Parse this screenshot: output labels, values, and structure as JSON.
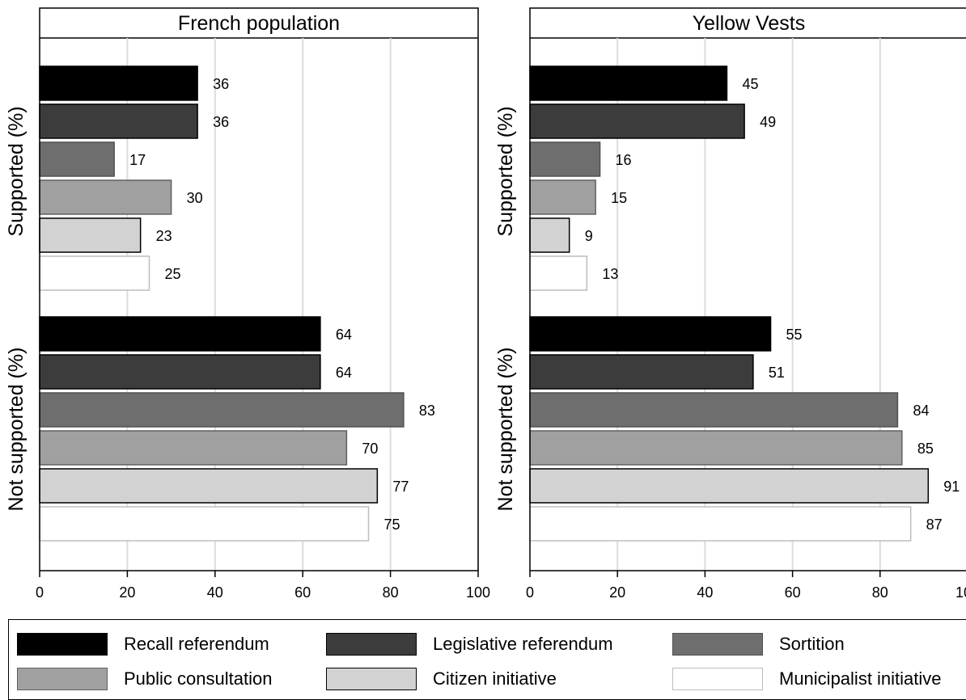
{
  "chart_data": {
    "type": "bar",
    "orientation": "horizontal",
    "xlim": [
      0,
      100
    ],
    "x_ticks": [
      0,
      20,
      40,
      60,
      80,
      100
    ],
    "grid": true,
    "groups": [
      "Supported (%)",
      "Not supported (%)"
    ],
    "series_names": [
      "Recall referendum",
      "Legislative referendum",
      "Sortition",
      "Public consultation",
      "Citizen initiative",
      "Municipalist initiative"
    ],
    "series_colors": [
      "#000000",
      "#3c3c3c",
      "#6e6e6e",
      "#a0a0a0",
      "#d2d2d2",
      "#ffffff"
    ],
    "series_borders": [
      "#000000",
      "#000000",
      "#505050",
      "#606060",
      "#000000",
      "#bdbdbd"
    ],
    "panels": [
      {
        "title": "French population",
        "values": {
          "Supported (%)": [
            36,
            36,
            17,
            30,
            23,
            25
          ],
          "Not supported (%)": [
            64,
            64,
            83,
            70,
            77,
            75
          ]
        }
      },
      {
        "title": "Yellow Vests",
        "values": {
          "Supported (%)": [
            45,
            49,
            16,
            15,
            9,
            13
          ],
          "Not supported (%)": [
            55,
            51,
            84,
            85,
            91,
            87
          ]
        }
      }
    ],
    "legend_position": "bottom"
  }
}
